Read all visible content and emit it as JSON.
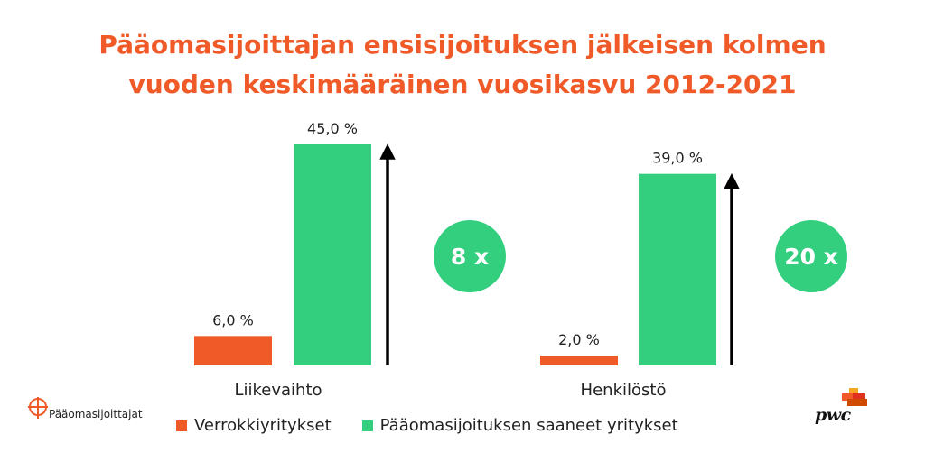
{
  "title": {
    "line1": "Pääomasijoittajan ensisijoituksen jälkeisen kolmen",
    "line2": "vuoden keskimääräinen vuosikasvu 2012-2021"
  },
  "chart_data": {
    "type": "bar",
    "title": "Pääomasijoittajan ensisijoituksen jälkeisen kolmen vuoden keskimääräinen vuosikasvu 2012-2021",
    "categories": [
      "Liikevaihto",
      "Henkilöstö"
    ],
    "series": [
      {
        "name": "Verrokkiyritykset",
        "color": "#f05a28",
        "values": [
          6.0,
          2.0
        ],
        "labels": [
          "6,0 %",
          "2,0 %"
        ]
      },
      {
        "name": "Pääomasijoituksen saaneet yritykset",
        "color": "#33cf7f",
        "values": [
          45.0,
          39.0
        ],
        "labels": [
          "45,0 %",
          "39,0 %"
        ]
      }
    ],
    "annotations": [
      {
        "category": "Liikevaihto",
        "text": "8 x"
      },
      {
        "category": "Henkilöstö",
        "text": "20 x"
      }
    ],
    "ylim": [
      0,
      45
    ],
    "xlabel": "",
    "ylabel": "",
    "grid": false,
    "legend": "bottom"
  },
  "legend": {
    "items": [
      {
        "label": "Verrokkiyritykset",
        "color": "#f05a28"
      },
      {
        "label": "Pääomasijoituksen saaneet yritykset",
        "color": "#33cf7f"
      }
    ]
  },
  "logos": {
    "left_text": "Pääomasijoittajat",
    "right_text": "pwc"
  }
}
